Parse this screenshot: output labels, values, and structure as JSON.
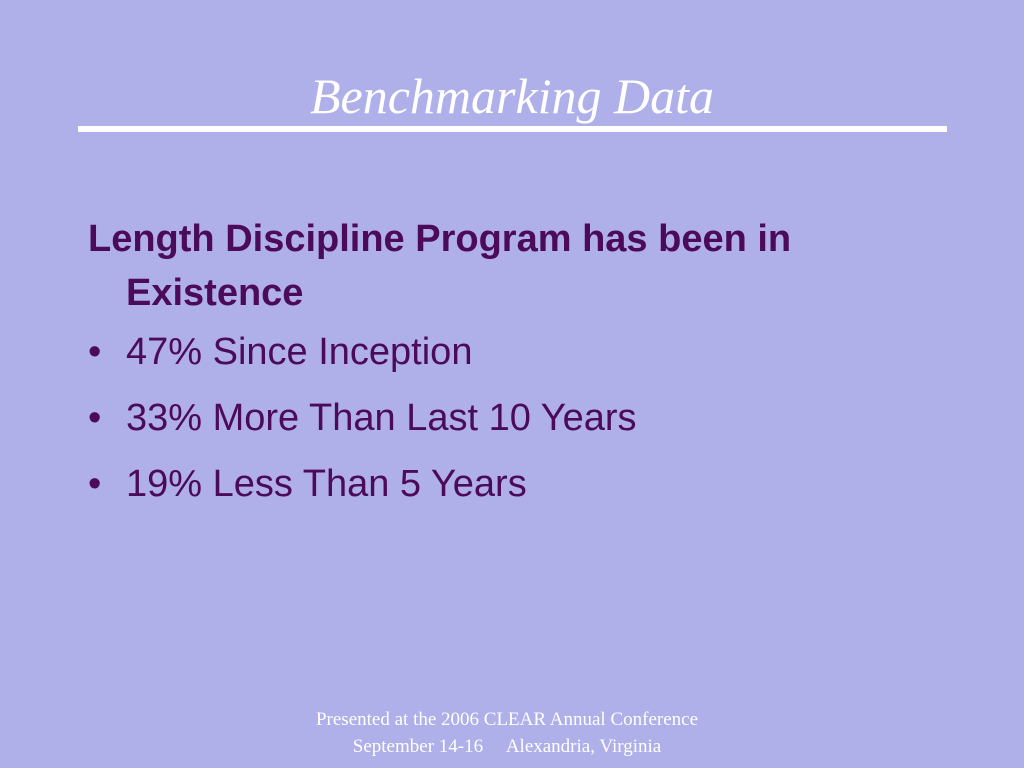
{
  "slide": {
    "title": "Benchmarking Data",
    "heading": "Length Discipline Program has been in Existence",
    "bullet_glyph": "•",
    "bullets": [
      "47% Since Inception",
      "33% More Than Last 10 Years",
      "19% Less Than 5 Years"
    ],
    "footer": {
      "line1": "Presented at the 2006 CLEAR Annual Conference",
      "date": "September 14-16",
      "location": "Alexandria, Virginia"
    }
  },
  "colors": {
    "background": "#afafe9",
    "title": "#ffffff",
    "body_text": "#4b0a5a"
  }
}
